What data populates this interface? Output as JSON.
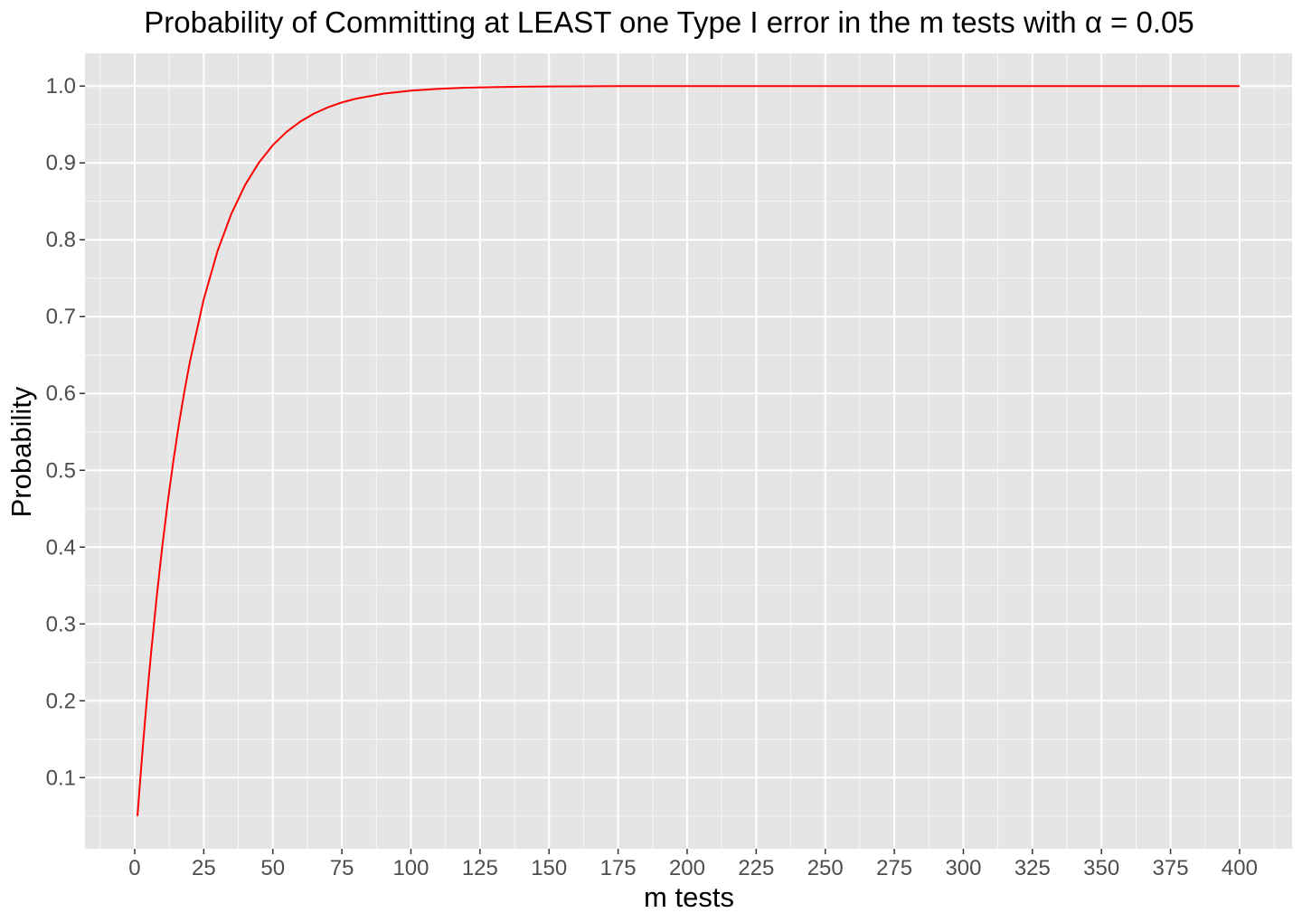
{
  "chart_data": {
    "type": "line",
    "title": "Probability of Committing at LEAST one Type I error in the m tests with α = 0.05",
    "xlabel": "m tests",
    "ylabel": "Probability",
    "xlim": [
      -18,
      419
    ],
    "ylim": [
      0.0074,
      1.0426
    ],
    "x_ticks": [
      0,
      25,
      50,
      75,
      100,
      125,
      150,
      175,
      200,
      225,
      250,
      275,
      300,
      325,
      350,
      375,
      400
    ],
    "x_tick_labels": [
      "0",
      "25",
      "50",
      "75",
      "100",
      "125",
      "150",
      "175",
      "200",
      "225",
      "250",
      "275",
      "300",
      "325",
      "350",
      "375",
      "400"
    ],
    "y_ticks": [
      0.1,
      0.2,
      0.3,
      0.4,
      0.5,
      0.6,
      0.7,
      0.8,
      0.9,
      1.0
    ],
    "y_tick_labels": [
      "0.1",
      "0.2",
      "0.3",
      "0.4",
      "0.5",
      "0.6",
      "0.7",
      "0.8",
      "0.9",
      "1.0"
    ],
    "grid": true,
    "series": [
      {
        "color": "#ff0000",
        "x": [
          1,
          2,
          3,
          4,
          5,
          6,
          8,
          10,
          12,
          14,
          16,
          18,
          20,
          25,
          30,
          35,
          40,
          45,
          50,
          55,
          60,
          65,
          70,
          75,
          80,
          90,
          100,
          110,
          120,
          130,
          140,
          150,
          175,
          200,
          250,
          300,
          350,
          400
        ],
        "y": [
          0.05,
          0.0975,
          0.1426,
          0.1855,
          0.2262,
          0.2649,
          0.3366,
          0.4013,
          0.4596,
          0.5123,
          0.5599,
          0.6028,
          0.6415,
          0.7226,
          0.7854,
          0.8339,
          0.8715,
          0.9006,
          0.9231,
          0.9405,
          0.9539,
          0.9644,
          0.9724,
          0.9787,
          0.9835,
          0.9901,
          0.9941,
          0.9965,
          0.9979,
          0.9987,
          0.9992,
          0.9995,
          0.9999,
          1.0,
          1.0,
          1.0,
          1.0,
          1.0
        ]
      }
    ]
  },
  "colors": {
    "panel_background": "#e5e5e5",
    "grid_line": "#ffffff",
    "line": "#ff0000"
  }
}
